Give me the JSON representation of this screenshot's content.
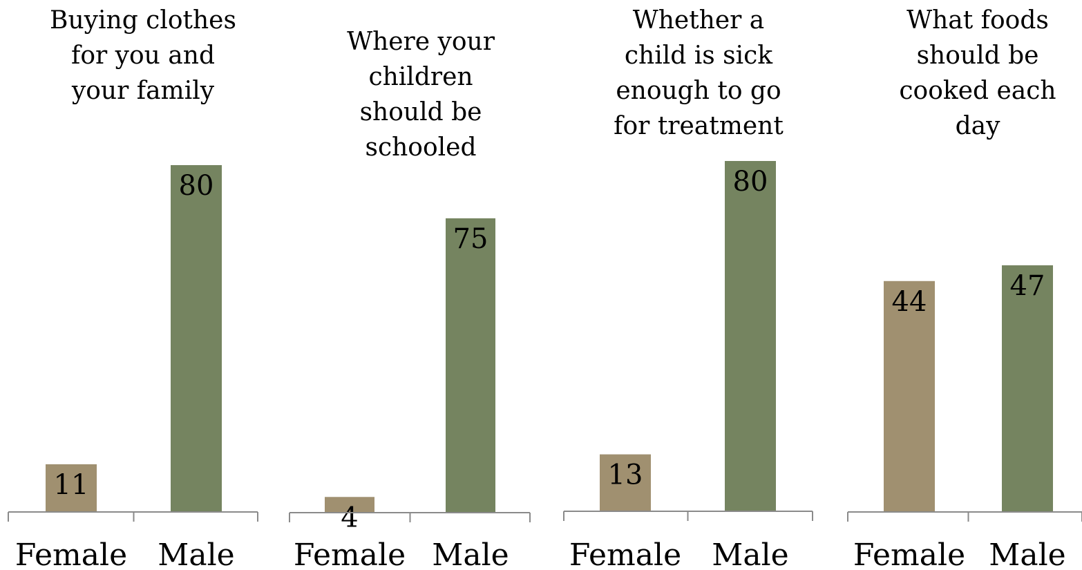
{
  "chart_data": [
    {
      "type": "bar",
      "title": "Buying clothes\nfor you and\nyour family",
      "categories": [
        "Female",
        "Male"
      ],
      "values": [
        11,
        80
      ],
      "colors": [
        "#a09070",
        "#758460"
      ],
      "ylim": [
        0,
        80
      ],
      "grid": false
    },
    {
      "type": "bar",
      "title": "Where your\nchildren\nshould be\nschooled",
      "categories": [
        "Female",
        "Male"
      ],
      "values": [
        4,
        75
      ],
      "colors": [
        "#a09070",
        "#758460"
      ],
      "ylim": [
        0,
        80
      ],
      "grid": false
    },
    {
      "type": "bar",
      "title": "Whether a\nchild is sick\nenough to go\nfor treatment",
      "categories": [
        "Female",
        "Male"
      ],
      "values": [
        13,
        80
      ],
      "colors": [
        "#a09070",
        "#758460"
      ],
      "ylim": [
        0,
        80
      ],
      "grid": false
    },
    {
      "type": "bar",
      "title": "What foods\nshould be\ncooked each\nday",
      "categories": [
        "Female",
        "Male"
      ],
      "values": [
        44,
        47
      ],
      "colors": [
        "#a09070",
        "#758460"
      ],
      "ylim": [
        0,
        80
      ],
      "grid": false
    }
  ]
}
